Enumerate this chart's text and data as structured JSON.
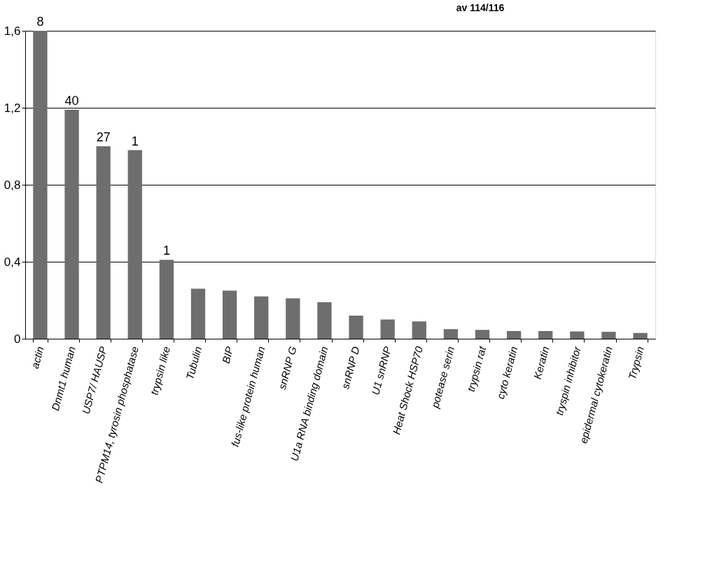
{
  "chart_data": {
    "type": "bar",
    "title": "av 114/116",
    "categories": [
      "actin",
      "Dnmt1 human",
      "USP7/ HAUSP",
      "PTPM14, tyrosin phosphatase",
      "trypsin like",
      "Tubulin",
      "BIP",
      "fus-like protein human",
      "snRNP G",
      "U1a RNA binding domain",
      "snRNP D",
      "U1 snRNP",
      "Heat Shock HSP70",
      "potease serin",
      "trypsin rat",
      "cyto keratin",
      "Keratin",
      "tryspin inhibitor",
      "epidermal cytokeratin",
      "Trypsin"
    ],
    "values": [
      1.6,
      1.19,
      1.0,
      0.98,
      0.41,
      0.26,
      0.25,
      0.22,
      0.21,
      0.19,
      0.12,
      0.1,
      0.09,
      0.05,
      0.046,
      0.04,
      0.04,
      0.038,
      0.036,
      0.03
    ],
    "annotations": [
      {
        "text": "8",
        "x": "actin",
        "y": 1.6
      },
      {
        "text": "40",
        "x": "Dnmt1 human",
        "y": 1.19
      },
      {
        "text": "27",
        "x": "USP7/ HAUSP",
        "y": 1.0
      },
      {
        "text": "1",
        "x": "PTPM14, tyrosin phosphatase",
        "y": 0.98
      },
      {
        "text": "1",
        "x": "trypsin like",
        "y": 0.41
      }
    ],
    "color": "#6e6e6e",
    "ylim": [
      0,
      1.6
    ],
    "yticks": [
      {
        "value": 0,
        "label": "0"
      },
      {
        "value": 0.4,
        "label": "0,4"
      },
      {
        "value": 0.8,
        "label": "0,8"
      },
      {
        "value": 1.2,
        "label": "1,2"
      },
      {
        "value": 1.6,
        "label": "1,6"
      }
    ],
    "grid": "y"
  }
}
